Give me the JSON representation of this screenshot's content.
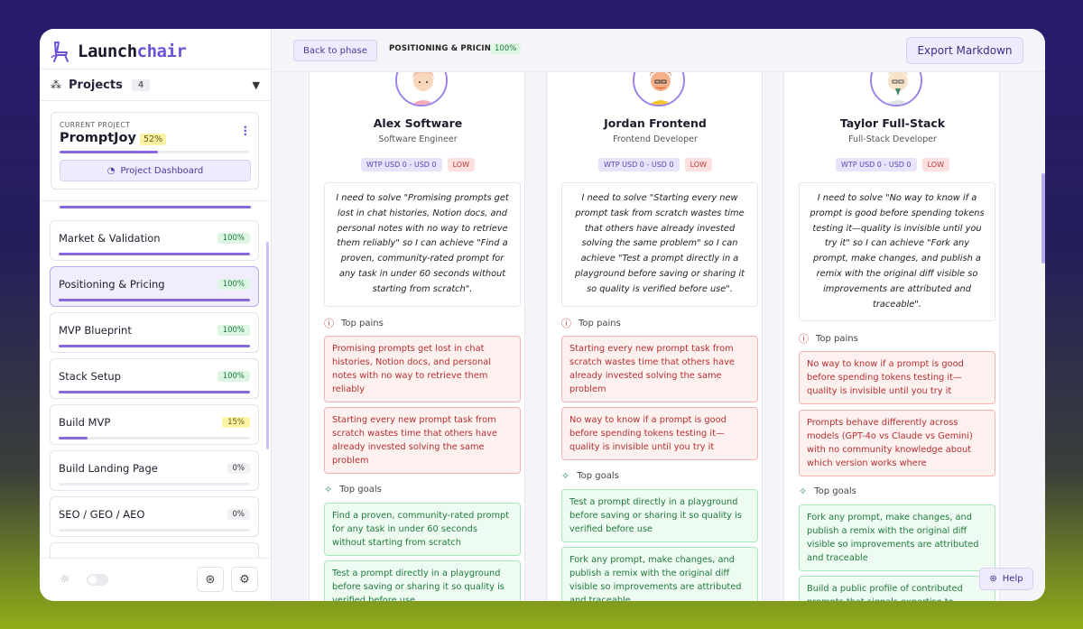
{
  "app": {
    "logo_prefix": "Launch",
    "logo_suffix": "chair"
  },
  "sidebar": {
    "projects_label": "Projects",
    "projects_count": "4",
    "current_caption": "CURRENT PROJECT",
    "current_name": "PromptJoy",
    "current_pct": "52%",
    "current_progress": 0.52,
    "dashboard_label": "Project Dashboard",
    "items": [
      {
        "label": "Market & Validation",
        "pct": "100%",
        "progress": 1.0,
        "status": "done"
      },
      {
        "label": "Positioning & Pricing",
        "pct": "100%",
        "progress": 1.0,
        "status": "done",
        "active": true
      },
      {
        "label": "MVP Blueprint",
        "pct": "100%",
        "progress": 1.0,
        "status": "done"
      },
      {
        "label": "Stack Setup",
        "pct": "100%",
        "progress": 1.0,
        "status": "done"
      },
      {
        "label": "Build MVP",
        "pct": "15%",
        "progress": 0.15,
        "status": "warn"
      },
      {
        "label": "Build Landing Page",
        "pct": "0%",
        "progress": 0,
        "status": "zero"
      },
      {
        "label": "SEO / GEO / AEO",
        "pct": "0%",
        "progress": 0,
        "status": "zero"
      }
    ]
  },
  "topbar": {
    "back_label": "Back to phase",
    "phase_label": "POSITIONING & PRICING",
    "phase_pct": "100%",
    "export_label": "Export Markdown"
  },
  "help_label": "Help",
  "sections": {
    "pains_label": "Top pains",
    "goals_label": "Top goals"
  },
  "personas": [
    {
      "name": "Alex Software",
      "role": "Software Engineer",
      "wtp": "WTP USD 0 - USD 0",
      "level": "LOW",
      "quote": "I need to solve \"Promising prompts get lost in chat histories, Notion docs, and personal notes with no way to retrieve them reliably\" so I can achieve \"Find a proven, community-rated prompt for any task in under 60 seconds without starting from scratch\".",
      "pains": [
        "Promising prompts get lost in chat histories, Notion docs, and personal notes with no way to retrieve them reliably",
        "Starting every new prompt task from scratch wastes time that others have already invested solving the same problem"
      ],
      "goals": [
        "Find a proven, community-rated prompt for any task in under 60 seconds without starting from scratch",
        "Test a prompt directly in a playground before saving or sharing it so quality is verified before use"
      ]
    },
    {
      "name": "Jordan Frontend",
      "role": "Frontend Developer",
      "wtp": "WTP USD 0 - USD 0",
      "level": "LOW",
      "quote": "I need to solve \"Starting every new prompt task from scratch wastes time that others have already invested solving the same problem\" so I can achieve \"Test a prompt directly in a playground before saving or sharing it so quality is verified before use\".",
      "pains": [
        "Starting every new prompt task from scratch wastes time that others have already invested solving the same problem",
        "No way to know if a prompt is good before spending tokens testing it—quality is invisible until you try it"
      ],
      "goals": [
        "Test a prompt directly in a playground before saving or sharing it so quality is verified before use",
        "Fork any prompt, make changes, and publish a remix with the original diff visible so improvements are attributed and traceable"
      ]
    },
    {
      "name": "Taylor Full-Stack",
      "role": "Full-Stack Developer",
      "wtp": "WTP USD 0 - USD 0",
      "level": "LOW",
      "quote": "I need to solve \"No way to know if a prompt is good before spending tokens testing it—quality is invisible until you try it\" so I can achieve \"Fork any prompt, make changes, and publish a remix with the original diff visible so improvements are attributed and traceable\".",
      "pains": [
        "No way to know if a prompt is good before spending tokens testing it—quality is invisible until you try it",
        "Prompts behave differently across models (GPT-4o vs Claude vs Gemini) with no community knowledge about which version works where"
      ],
      "goals": [
        "Fork any prompt, make changes, and publish a remix with the original diff visible so improvements are attributed and traceable",
        "Build a public profile of contributed prompts that signals expertise to"
      ]
    }
  ],
  "colors": {
    "accent": "#6d52d8",
    "pain_text": "#b62f2f",
    "goal_text": "#1f7a3d"
  }
}
